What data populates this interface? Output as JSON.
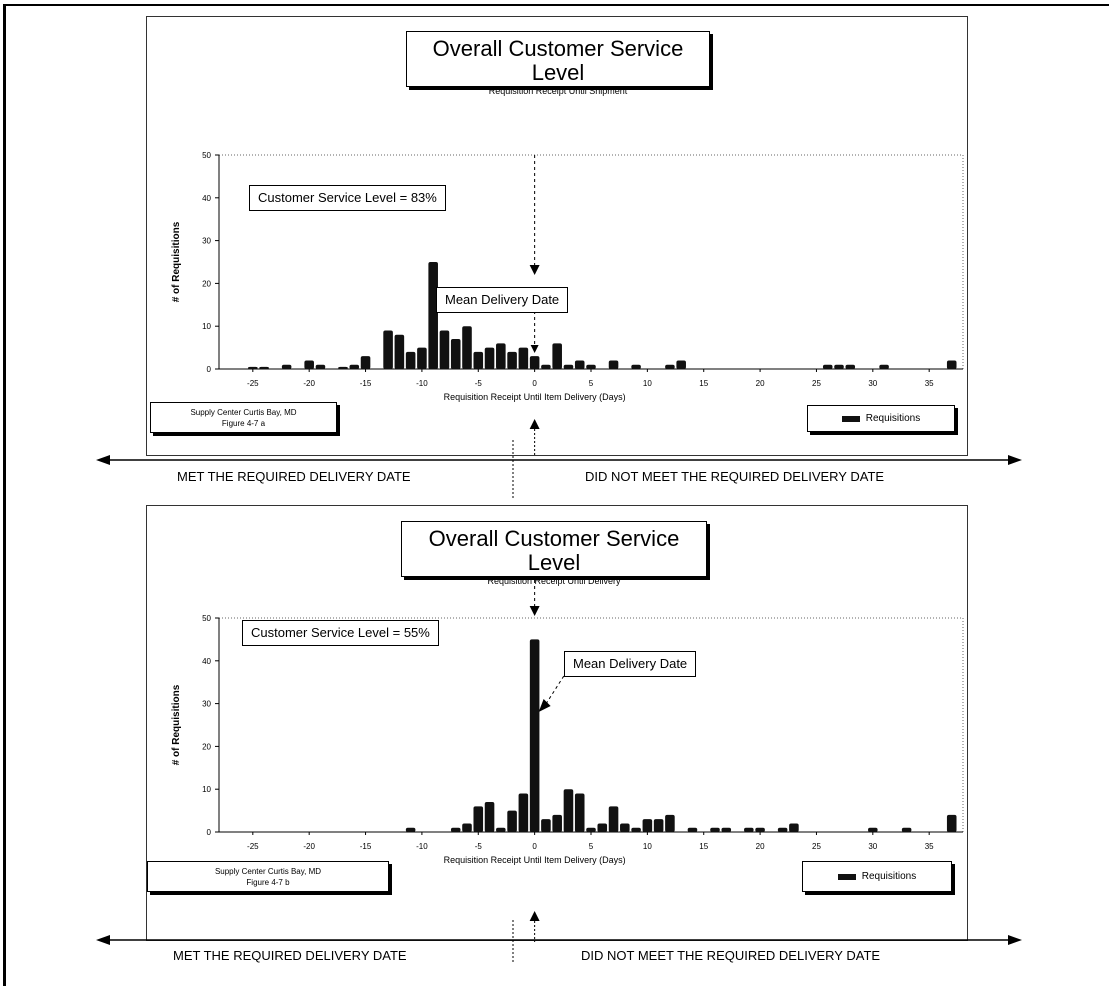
{
  "chart_data": [
    {
      "type": "bar",
      "title": "Overall Customer Service Level",
      "subtitle": "Requisition Receipt Until Shipment",
      "xlabel": "Requisition Receipt Until Item Delivery (Days)",
      "ylabel": "# of Requisitions",
      "xlim": [
        -28,
        38
      ],
      "ylim": [
        0,
        50
      ],
      "xticks": [
        -25,
        -20,
        -15,
        -10,
        -5,
        0,
        5,
        10,
        15,
        20,
        25,
        30,
        35
      ],
      "yticks": [
        0,
        10,
        20,
        30,
        40,
        50
      ],
      "grid": false,
      "legend_position": "bottom-right",
      "series": [
        {
          "name": "Requisitions",
          "x": [
            -25,
            -24,
            -22,
            -20,
            -19,
            -17,
            -16,
            -15,
            -13,
            -12,
            -11,
            -10,
            -9,
            -8,
            -7,
            -6,
            -5,
            -4,
            -3,
            -2,
            -1,
            0,
            1,
            2,
            3,
            4,
            5,
            7,
            9,
            12,
            13,
            26,
            27,
            28,
            31,
            37
          ],
          "values": [
            0.5,
            0.5,
            1,
            2,
            1,
            0.5,
            1,
            3,
            9,
            8,
            4,
            5,
            25,
            9,
            7,
            10,
            4,
            5,
            6,
            4,
            5,
            3,
            1,
            6,
            1,
            2,
            1,
            2,
            1,
            1,
            2,
            1,
            1,
            1,
            1,
            2
          ]
        }
      ],
      "annotations": [
        "Customer Service Level = 83%",
        "Mean Delivery Date"
      ],
      "source": "Supply Center Curtis Bay, MD",
      "figure": "Figure 4-7 a"
    },
    {
      "type": "bar",
      "title": "Overall Customer Service Level",
      "subtitle": "Requisition Receipt Until Delivery",
      "xlabel": "Requisition Receipt Until Item Delivery (Days)",
      "ylabel": "# of Requisitions",
      "xlim": [
        -28,
        38
      ],
      "ylim": [
        0,
        50
      ],
      "xticks": [
        -25,
        -20,
        -15,
        -10,
        -5,
        0,
        5,
        10,
        15,
        20,
        25,
        30,
        35
      ],
      "yticks": [
        0,
        10,
        20,
        30,
        40,
        50
      ],
      "grid": false,
      "legend_position": "bottom-right",
      "series": [
        {
          "name": "Requisitions",
          "x": [
            -11,
            -7,
            -6,
            -5,
            -4,
            -3,
            -2,
            -1,
            0,
            1,
            2,
            3,
            4,
            5,
            6,
            7,
            8,
            9,
            10,
            11,
            12,
            14,
            16,
            17,
            19,
            20,
            22,
            23,
            30,
            33,
            37
          ],
          "values": [
            1,
            1,
            2,
            6,
            7,
            1,
            5,
            9,
            45,
            3,
            4,
            10,
            9,
            1,
            2,
            6,
            2,
            1,
            3,
            3,
            4,
            1,
            1,
            1,
            1,
            1,
            1,
            2,
            1,
            1,
            4
          ]
        }
      ],
      "annotations": [
        "Customer Service Level = 55%",
        "Mean Delivery Date"
      ],
      "source": "Supply Center Curtis Bay, MD",
      "figure": "Figure 4-7 b"
    }
  ],
  "captions": {
    "met": "MET THE REQUIRED DELIVERY DATE",
    "not_met": "DID NOT MEET THE REQUIRED DELIVERY DATE"
  },
  "legend_label": "Requisitions",
  "colors": {
    "bar": "#111111",
    "axis": "#000000"
  }
}
